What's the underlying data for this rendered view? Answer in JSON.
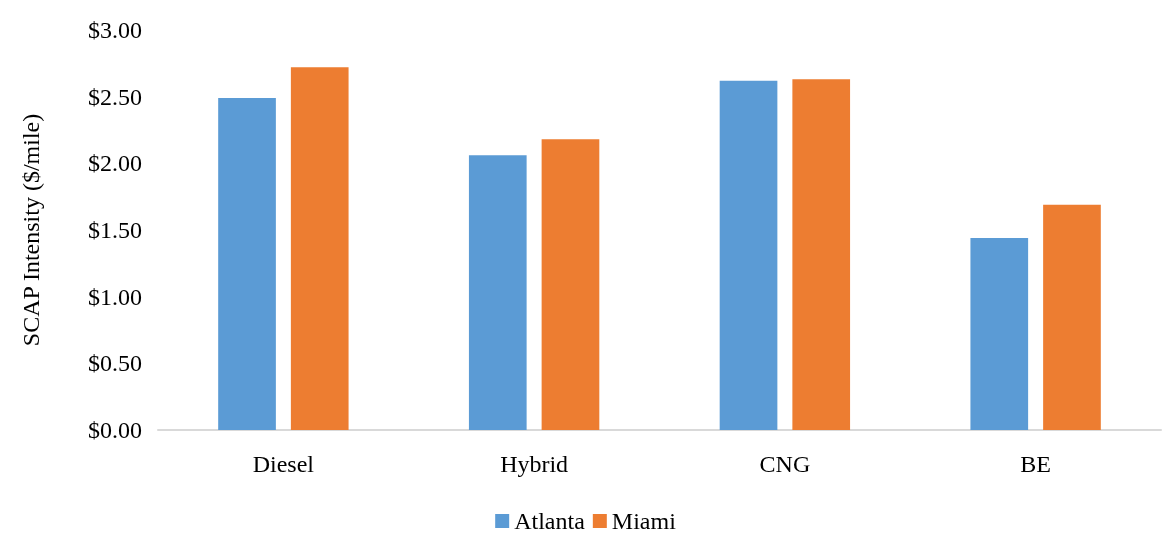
{
  "chart_data": {
    "type": "bar",
    "ylabel": "SCAP Intensity ($/mile)",
    "categories": [
      "Diesel",
      "Hybrid",
      "CNG",
      "BE"
    ],
    "series": [
      {
        "name": "Atlanta",
        "color": "#5b9bd5",
        "values": [
          2.49,
          2.06,
          2.62,
          1.44
        ]
      },
      {
        "name": "Miami",
        "color": "#ed7d31",
        "values": [
          2.72,
          2.18,
          2.63,
          1.69
        ]
      }
    ],
    "ylim": [
      0,
      3
    ],
    "yticks": [
      {
        "value": 0,
        "label": "$0.00"
      },
      {
        "value": 0.5,
        "label": "$0.50"
      },
      {
        "value": 1,
        "label": "$1.00"
      },
      {
        "value": 1.5,
        "label": "$1.50"
      },
      {
        "value": 2,
        "label": "$2.00"
      },
      {
        "value": 2.5,
        "label": "$2.50"
      },
      {
        "value": 3,
        "label": "$3.00"
      }
    ],
    "grid": false,
    "legend": "bottom"
  }
}
